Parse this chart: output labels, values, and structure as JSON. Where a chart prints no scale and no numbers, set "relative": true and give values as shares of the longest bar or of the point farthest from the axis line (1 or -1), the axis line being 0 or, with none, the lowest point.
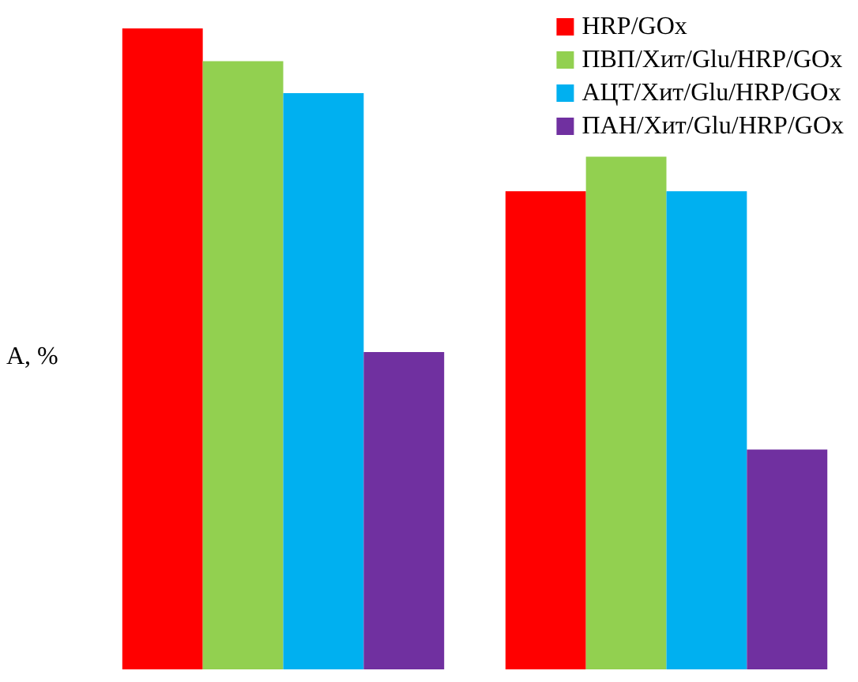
{
  "chart_data": {
    "type": "bar",
    "relative": true,
    "ylabel": "A, %",
    "categories": [
      null,
      null
    ],
    "legend": "top right",
    "series": [
      {
        "name": "HRP/GOx",
        "color": "#ff0000",
        "values": [
          1,
          0.746
        ]
      },
      {
        "name": "ПВП/Хит/Glu/HRP/GOx",
        "color": "#92d050",
        "values": [
          0.949,
          0.8
        ]
      },
      {
        "name": "АЦТ/Хит/Glu/HRP/GOx",
        "color": "#00b0f0",
        "values": [
          0.899,
          0.746
        ]
      },
      {
        "name": "ПАН/Хит/Glu/HRP/GOx",
        "color": "#7030a0",
        "values": [
          0.495,
          0.343
        ]
      }
    ]
  }
}
